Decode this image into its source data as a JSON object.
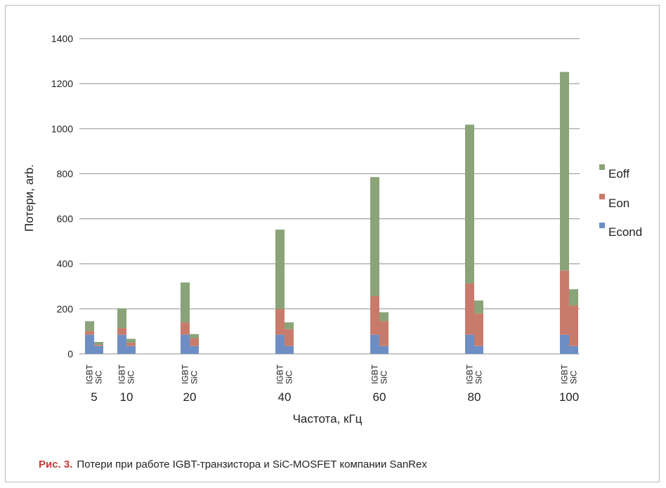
{
  "chart_data": {
    "type": "bar",
    "stacked": true,
    "title": "",
    "xlabel": "Частота, кГц",
    "ylabel": "Потери, arb.",
    "ylim": [
      0,
      1400
    ],
    "yticks": [
      0,
      200,
      400,
      600,
      800,
      1000,
      1200,
      1400
    ],
    "grid": true,
    "legend_position": "right",
    "groups": [
      "5",
      "10",
      "20",
      "40",
      "60",
      "80",
      "100"
    ],
    "devices": [
      "IGBT",
      "SiC"
    ],
    "series": [
      {
        "name": "Econd",
        "color": "#6d8ec4",
        "values": {
          "IGBT": [
            85,
            85,
            85,
            85,
            85,
            85,
            85
          ],
          "SiC": [
            35,
            35,
            35,
            35,
            35,
            35,
            35
          ]
        }
      },
      {
        "name": "Eon",
        "color": "#c97b6b",
        "values": {
          "IGBT": [
            17,
            30,
            55,
            115,
            172,
            228,
            285
          ],
          "SiC": [
            5,
            15,
            35,
            75,
            110,
            145,
            180
          ]
        }
      },
      {
        "name": "Eoff",
        "color": "#8aa378",
        "values": {
          "IGBT": [
            43,
            87,
            177,
            352,
            528,
            705,
            882
          ],
          "SiC": [
            13,
            17,
            18,
            30,
            40,
            57,
            72
          ]
        }
      }
    ]
  },
  "caption": {
    "label": "Рис. 3.",
    "text": "Потери при работе IGBT-транзистора и SiC-MOSFET компании SanRex"
  }
}
